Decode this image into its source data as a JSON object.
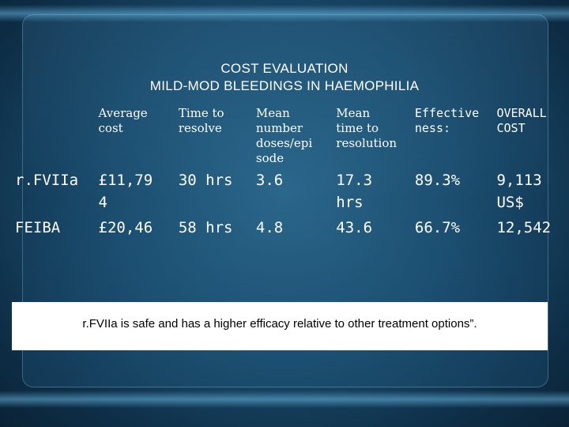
{
  "title": {
    "line1": "COST EVALUATION",
    "line2": "MILD-MOD BLEEDINGS IN HAEMOPHILIA"
  },
  "table": {
    "headers": [
      "",
      "Average cost",
      "Time to resolve",
      "Mean number doses/episode",
      "Mean time to resolution",
      "Effectiveness:",
      "OVERALL COST"
    ],
    "header_display": [
      "",
      "Average\ncost",
      "Time to\nresolve",
      "Mean\nnumber\ndoses/epi\nsode",
      "Mean\ntime to\nresolution",
      "Effective\nness:",
      "OVERALL\nCOST"
    ],
    "rows": [
      [
        "r.FVIIa",
        "£11,79 4",
        "30 hrs",
        "3.6",
        "17.3 hrs",
        "89.3%",
        "9,113 US$"
      ],
      [
        "FEIBA",
        "£20,46",
        "58 hrs",
        "4.8",
        "43.6",
        "66.7%",
        "12,542"
      ]
    ],
    "rows_display": [
      [
        "r.FVIIa",
        "£11,79\n4",
        "30 hrs",
        "3.6",
        "17.3\nhrs",
        "89.3%",
        "9,113\nUS$"
      ],
      [
        "FEIBA",
        "£20,46",
        "58 hrs",
        "4.8",
        "43.6",
        "66.7%",
        "12,542"
      ]
    ]
  },
  "note": "r.FVIIa is safe and has a higher efficacy relative to other treatment options”.",
  "colors": {
    "background": "#1c4f70",
    "text": "#ffffff",
    "note_bg": "#ffffff",
    "note_text": "#000000"
  }
}
